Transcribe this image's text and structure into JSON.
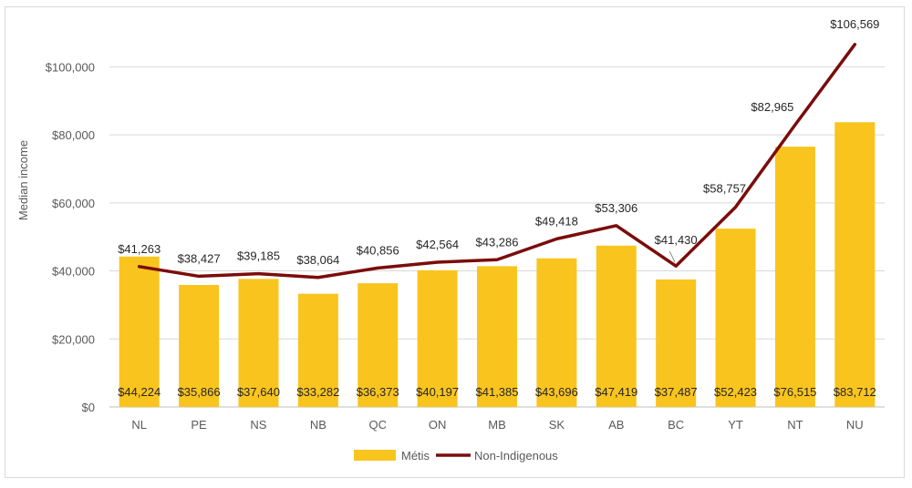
{
  "chart_data": {
    "type": "bar",
    "title": "",
    "xlabel": "",
    "ylabel": "Median income",
    "ylim": [
      0,
      110000
    ],
    "yticks": [
      0,
      20000,
      40000,
      60000,
      80000,
      100000
    ],
    "ytick_labels": [
      "$0",
      "$20,000",
      "$40,000",
      "$60,000",
      "$80,000",
      "$100,000"
    ],
    "grid": true,
    "legend_position": "bottom",
    "categories": [
      "NL",
      "PE",
      "NS",
      "NB",
      "QC",
      "ON",
      "MB",
      "SK",
      "AB",
      "BC",
      "YT",
      "NT",
      "NU"
    ],
    "series": [
      {
        "name": "Métis",
        "type": "bar",
        "color": "#F9C41E",
        "values": [
          44224,
          35866,
          37640,
          33282,
          36373,
          40197,
          41385,
          43696,
          47419,
          37487,
          52423,
          76515,
          83712
        ],
        "labels": [
          "$44,224",
          "$35,866",
          "$37,640",
          "$33,282",
          "$36,373",
          "$40,197",
          "$41,385",
          "$43,696",
          "$47,419",
          "$37,487",
          "$52,423",
          "$76,515",
          "$83,712"
        ]
      },
      {
        "name": "Non-Indigenous",
        "type": "line",
        "color": "#7B0C0C",
        "values": [
          41263,
          38427,
          39185,
          38064,
          40856,
          42564,
          43286,
          49418,
          53306,
          41430,
          58757,
          82965,
          106569
        ],
        "labels": [
          "$41,263",
          "$38,427",
          "$39,185",
          "$38,064",
          "$40,856",
          "$42,564",
          "$43,286",
          "$49,418",
          "$53,306",
          "$41,430",
          "$58,757",
          "$82,965",
          "$106,569"
        ]
      }
    ]
  }
}
